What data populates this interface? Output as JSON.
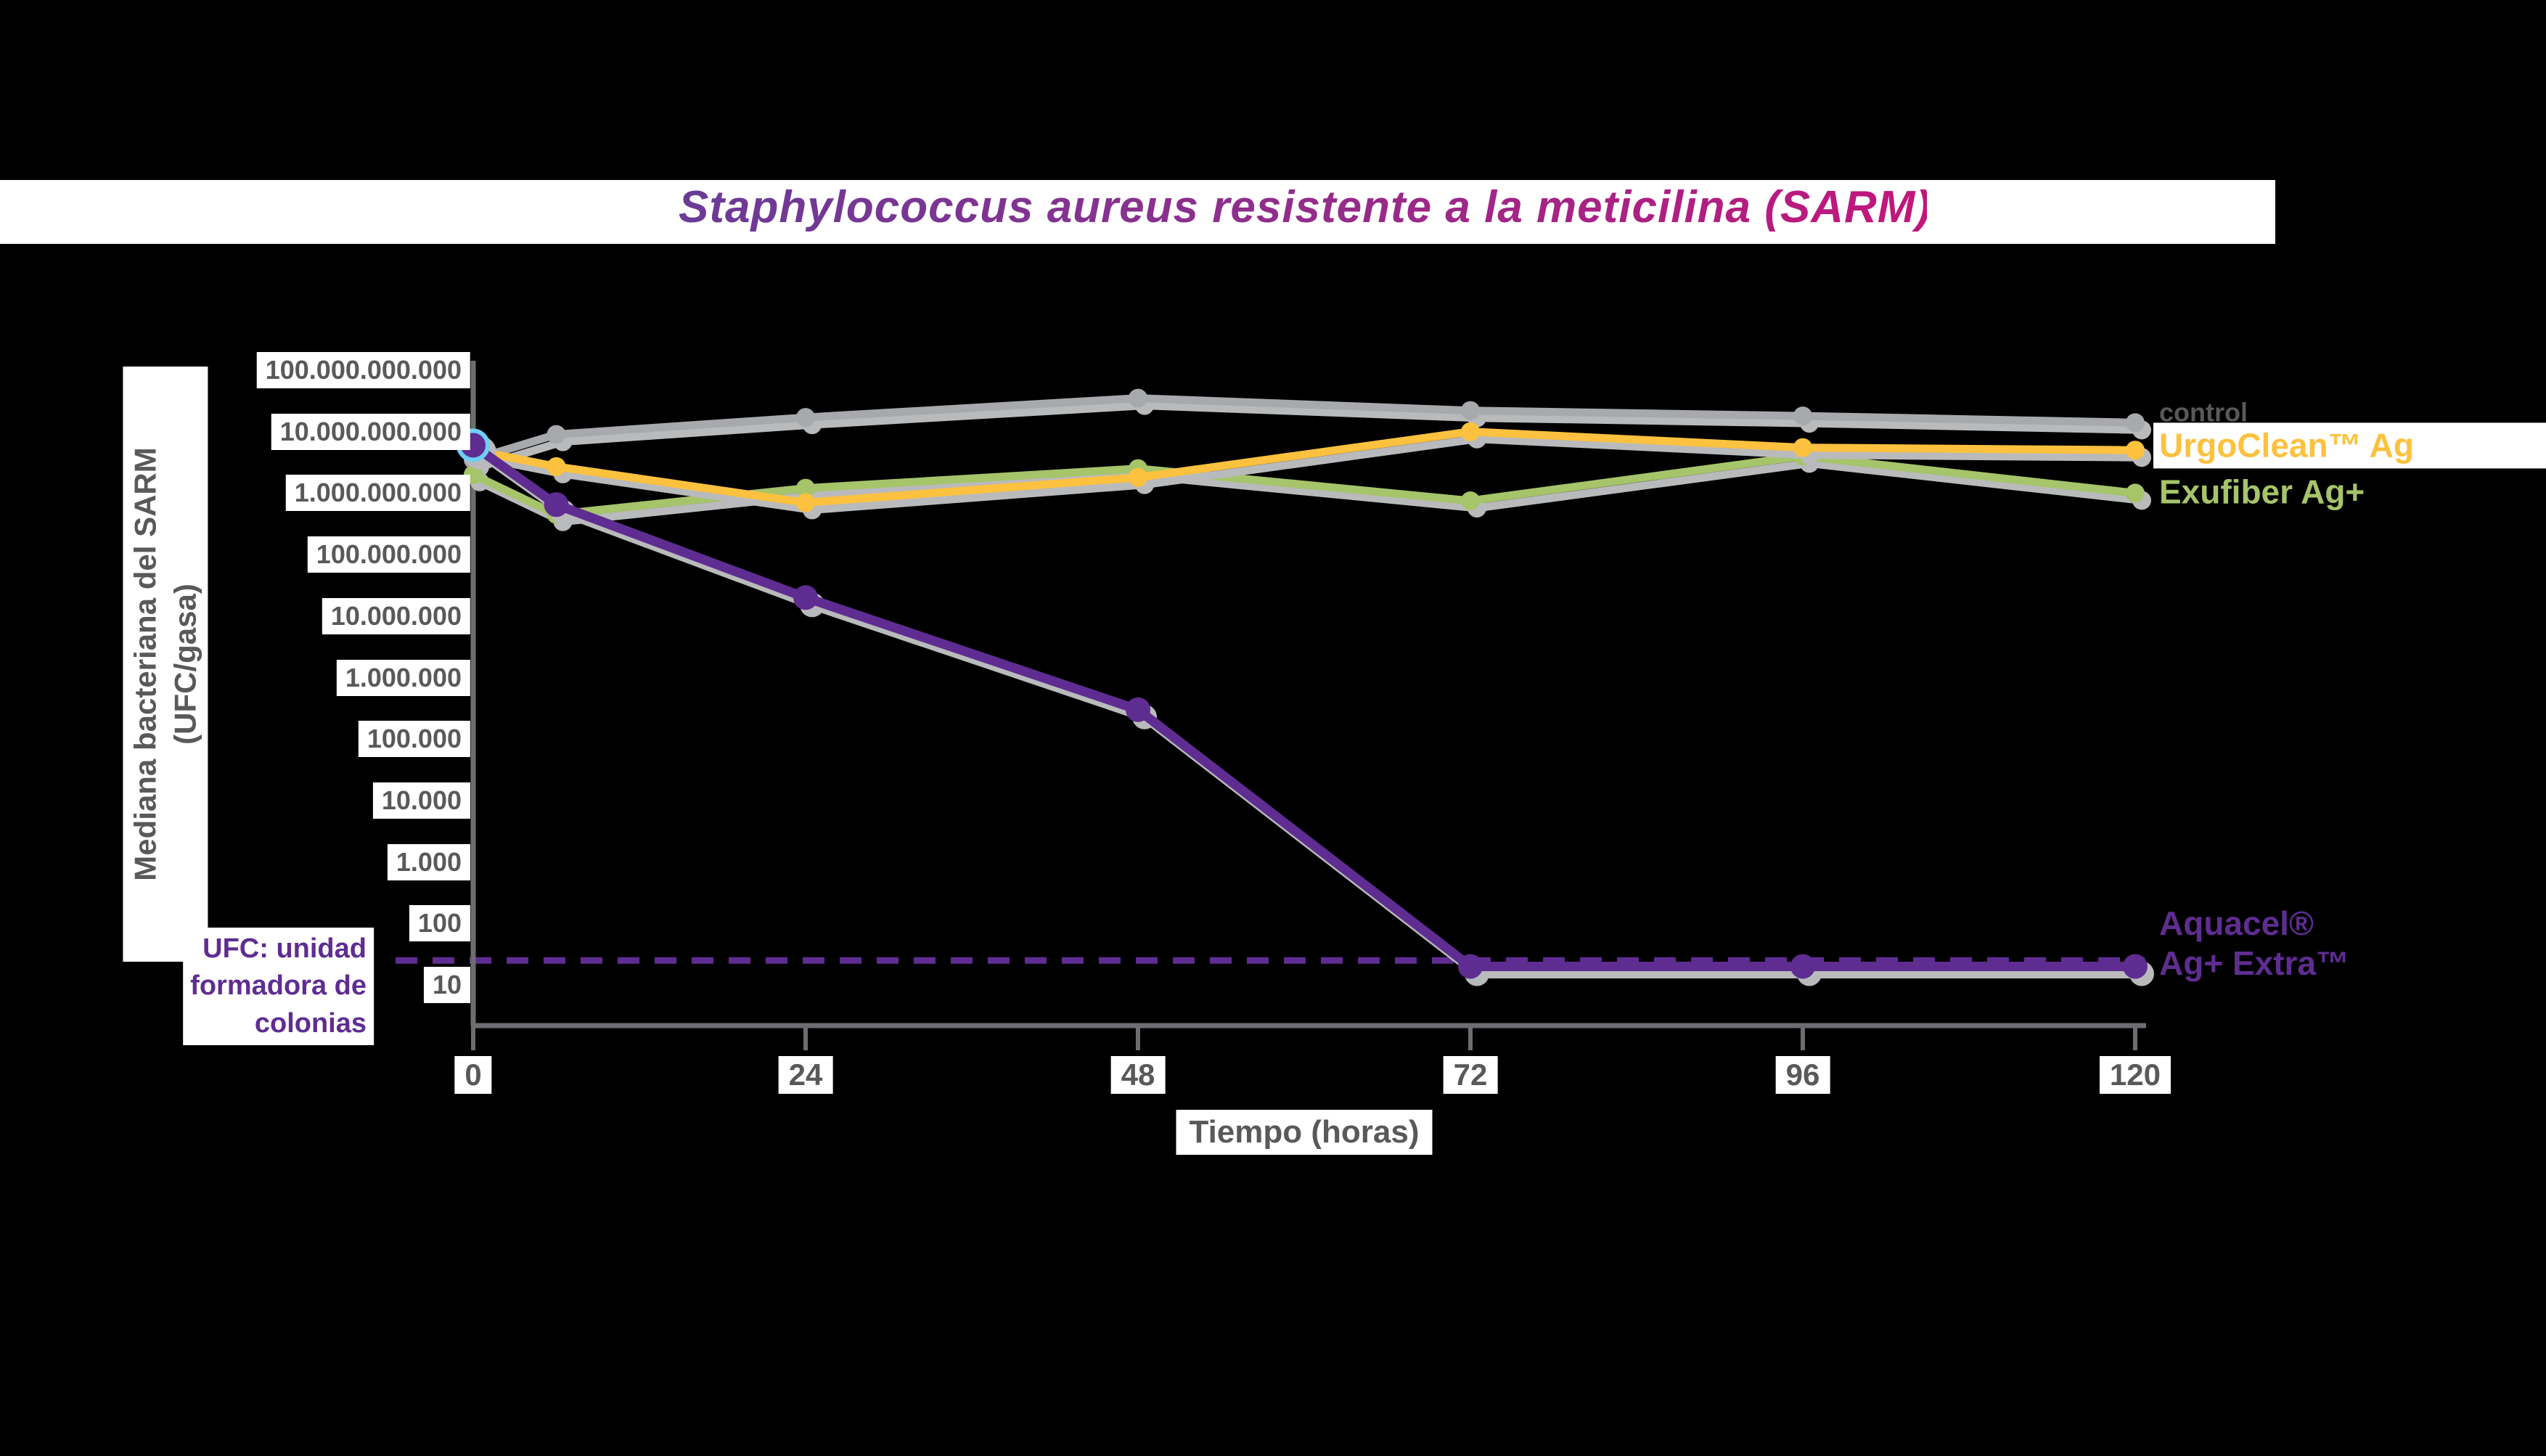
{
  "title": "Staphylococcus aureus resistente a la meticilina (SARM)",
  "axes": {
    "y_title_line1": "Mediana bacteriana del SARM",
    "y_title_line2": "(UFC/gasa)",
    "x_title": "Tiempo (horas)",
    "y_tick_labels": [
      "100.000.000.000",
      "10.000.000.000",
      "1.000.000.000",
      "100.000.000",
      "10.000.000",
      "1.000.000",
      "100.000",
      "10.000",
      "1.000",
      "100",
      "10"
    ],
    "y_tick_values": [
      100000000000.0,
      10000000000.0,
      1000000000.0,
      100000000.0,
      10000000.0,
      1000000.0,
      100000.0,
      10000.0,
      1000.0,
      100,
      10
    ],
    "x_tick_labels": [
      "0",
      "24",
      "48",
      "72",
      "96",
      "120"
    ],
    "x_tick_values": [
      0,
      24,
      48,
      72,
      96,
      120
    ]
  },
  "note": {
    "line1": "UFC: unidad",
    "line2": "formadora de",
    "line3": "colonias"
  },
  "legend": {
    "control": "control",
    "urgoclean": "UrgoClean™ Ag",
    "exufiber": "Exufiber Ag+",
    "aquacel_line1": "Aquacel®",
    "aquacel_line2": "Ag+ Extra™"
  },
  "colors": {
    "control": "#a7a9ac",
    "urgoclean": "#fcc13e",
    "exufiber": "#a6c46a",
    "aquacel": "#5f2d91",
    "axis": "#6d6e71",
    "tick_text": "#58595b",
    "shadow": "#b9babc",
    "start_marker_ring": "#6dcff6",
    "detection_line": "#5f2d91",
    "title_gradient_start": "#6a3b97",
    "title_gradient_end": "#c2167c"
  },
  "detection_limit": {
    "value": 25,
    "style": "dashed"
  },
  "chart_data": {
    "type": "line",
    "x": [
      0,
      6,
      24,
      48,
      72,
      96,
      120
    ],
    "xlabel": "Tiempo (horas)",
    "ylabel": "Mediana bacteriana del SARM (UFC/gasa)",
    "y_scale": "log",
    "ylim": [
      10,
      100000000000.0
    ],
    "xlim": [
      0,
      120
    ],
    "grid": false,
    "legend_position": "right-of-line-ends",
    "series": [
      {
        "name": "control",
        "key": "control",
        "color": "#a7a9ac",
        "values": [
          3500000000.0,
          9000000000.0,
          17000000000.0,
          35000000000.0,
          22000000000.0,
          18000000000.0,
          14000000000.0
        ]
      },
      {
        "name": "UrgoClean™ Ag",
        "key": "urgoclean",
        "color": "#fcc13e",
        "values": [
          5000000000.0,
          2700000000.0,
          700000000.0,
          1800000000.0,
          10000000000.0,
          5500000000.0,
          5000000000.0
        ]
      },
      {
        "name": "Exufiber Ag+",
        "key": "exufiber",
        "color": "#a6c46a",
        "values": [
          2000000000.0,
          450000000.0,
          1200000000.0,
          2500000000.0,
          750000000.0,
          4000000000.0,
          1000000000.0
        ]
      },
      {
        "name": "Aquacel® Ag+ Extra™",
        "key": "aquacel",
        "color": "#5f2d91",
        "values": [
          6000000000.0,
          650000000.0,
          20000000.0,
          300000.0,
          20,
          20,
          20
        ]
      }
    ]
  }
}
